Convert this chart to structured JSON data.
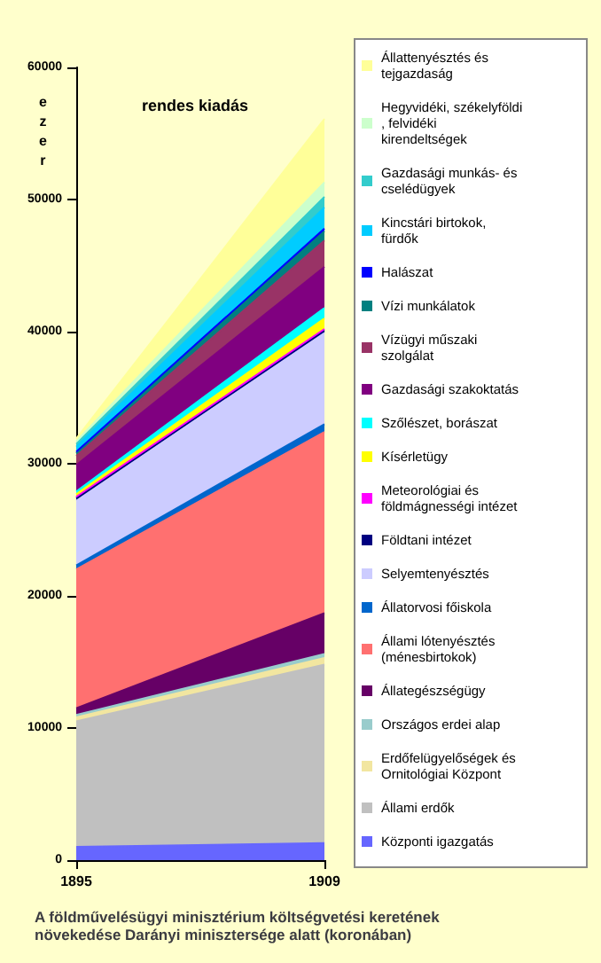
{
  "chart_data": {
    "type": "area",
    "stacked": true,
    "title": "A földművelésügyi minisztérium költségvetési keretének növekedése Darányi minisztersége alatt (koronában)",
    "ylabel": "ezer",
    "annotations": [
      "rendes kiadás"
    ],
    "categories": [
      "1895",
      "1909"
    ],
    "ylim": [
      0,
      60000
    ],
    "yticks": [
      0,
      10000,
      20000,
      30000,
      40000,
      50000,
      60000
    ],
    "grid": false,
    "legend": "right",
    "series": [
      {
        "name": "Központi igazgatás",
        "color": "#6666ff",
        "values": [
          1000,
          1300
        ]
      },
      {
        "name": "Állami erdők",
        "color": "#c0c0c0",
        "values": [
          9500,
          13500
        ]
      },
      {
        "name": "Erdőfelügyelőségek és Ornitológiai Központ",
        "color": "#f2e6a0",
        "values": [
          300,
          500
        ]
      },
      {
        "name": "Országos erdei alap",
        "color": "#99cccc",
        "values": [
          200,
          300
        ]
      },
      {
        "name": "Állategészségügy",
        "color": "#660066",
        "values": [
          500,
          3100
        ]
      },
      {
        "name": "Állami lótenyésztés (ménesbirtokok)",
        "color": "#ff7070",
        "values": [
          10500,
          13700
        ]
      },
      {
        "name": "Állatorvosi főiskola",
        "color": "#0066cc",
        "values": [
          300,
          600
        ]
      },
      {
        "name": "Selyemtenyésztés",
        "color": "#ccccff",
        "values": [
          4900,
          6900
        ]
      },
      {
        "name": "Földtani intézet",
        "color": "#000080",
        "values": [
          200,
          200
        ]
      },
      {
        "name": "Meteorológiai és földmágnességi intézet",
        "color": "#ff00ff",
        "values": [
          100,
          100
        ]
      },
      {
        "name": "Kísérletügy",
        "color": "#ffff00",
        "values": [
          200,
          800
        ]
      },
      {
        "name": "Szőlészet, borászat",
        "color": "#00ffff",
        "values": [
          200,
          800
        ]
      },
      {
        "name": "Gazdasági szakoktatás",
        "color": "#800080",
        "values": [
          2000,
          3100
        ]
      },
      {
        "name": "Vízügyi műszaki szolgálat",
        "color": "#993366",
        "values": [
          700,
          2000
        ]
      },
      {
        "name": "Vízi munkálatok",
        "color": "#008080",
        "values": [
          200,
          700
        ]
      },
      {
        "name": "Halászat",
        "color": "#0000ff",
        "values": [
          100,
          200
        ]
      },
      {
        "name": "Kincstári birtokok, fürdők",
        "color": "#00ccff",
        "values": [
          400,
          1600
        ]
      },
      {
        "name": "Gazdasági munkás- és cselédügyek",
        "color": "#33cccc",
        "values": [
          200,
          800
        ]
      },
      {
        "name": "Hegyvidéki, székelyföldi, felvidéki kirendeltségek",
        "color": "#ccffcc",
        "values": [
          200,
          1100
        ]
      },
      {
        "name": "Állattenyésztés és tejgazdaság",
        "color": "#ffff99",
        "values": [
          200,
          4800
        ]
      }
    ]
  }
}
